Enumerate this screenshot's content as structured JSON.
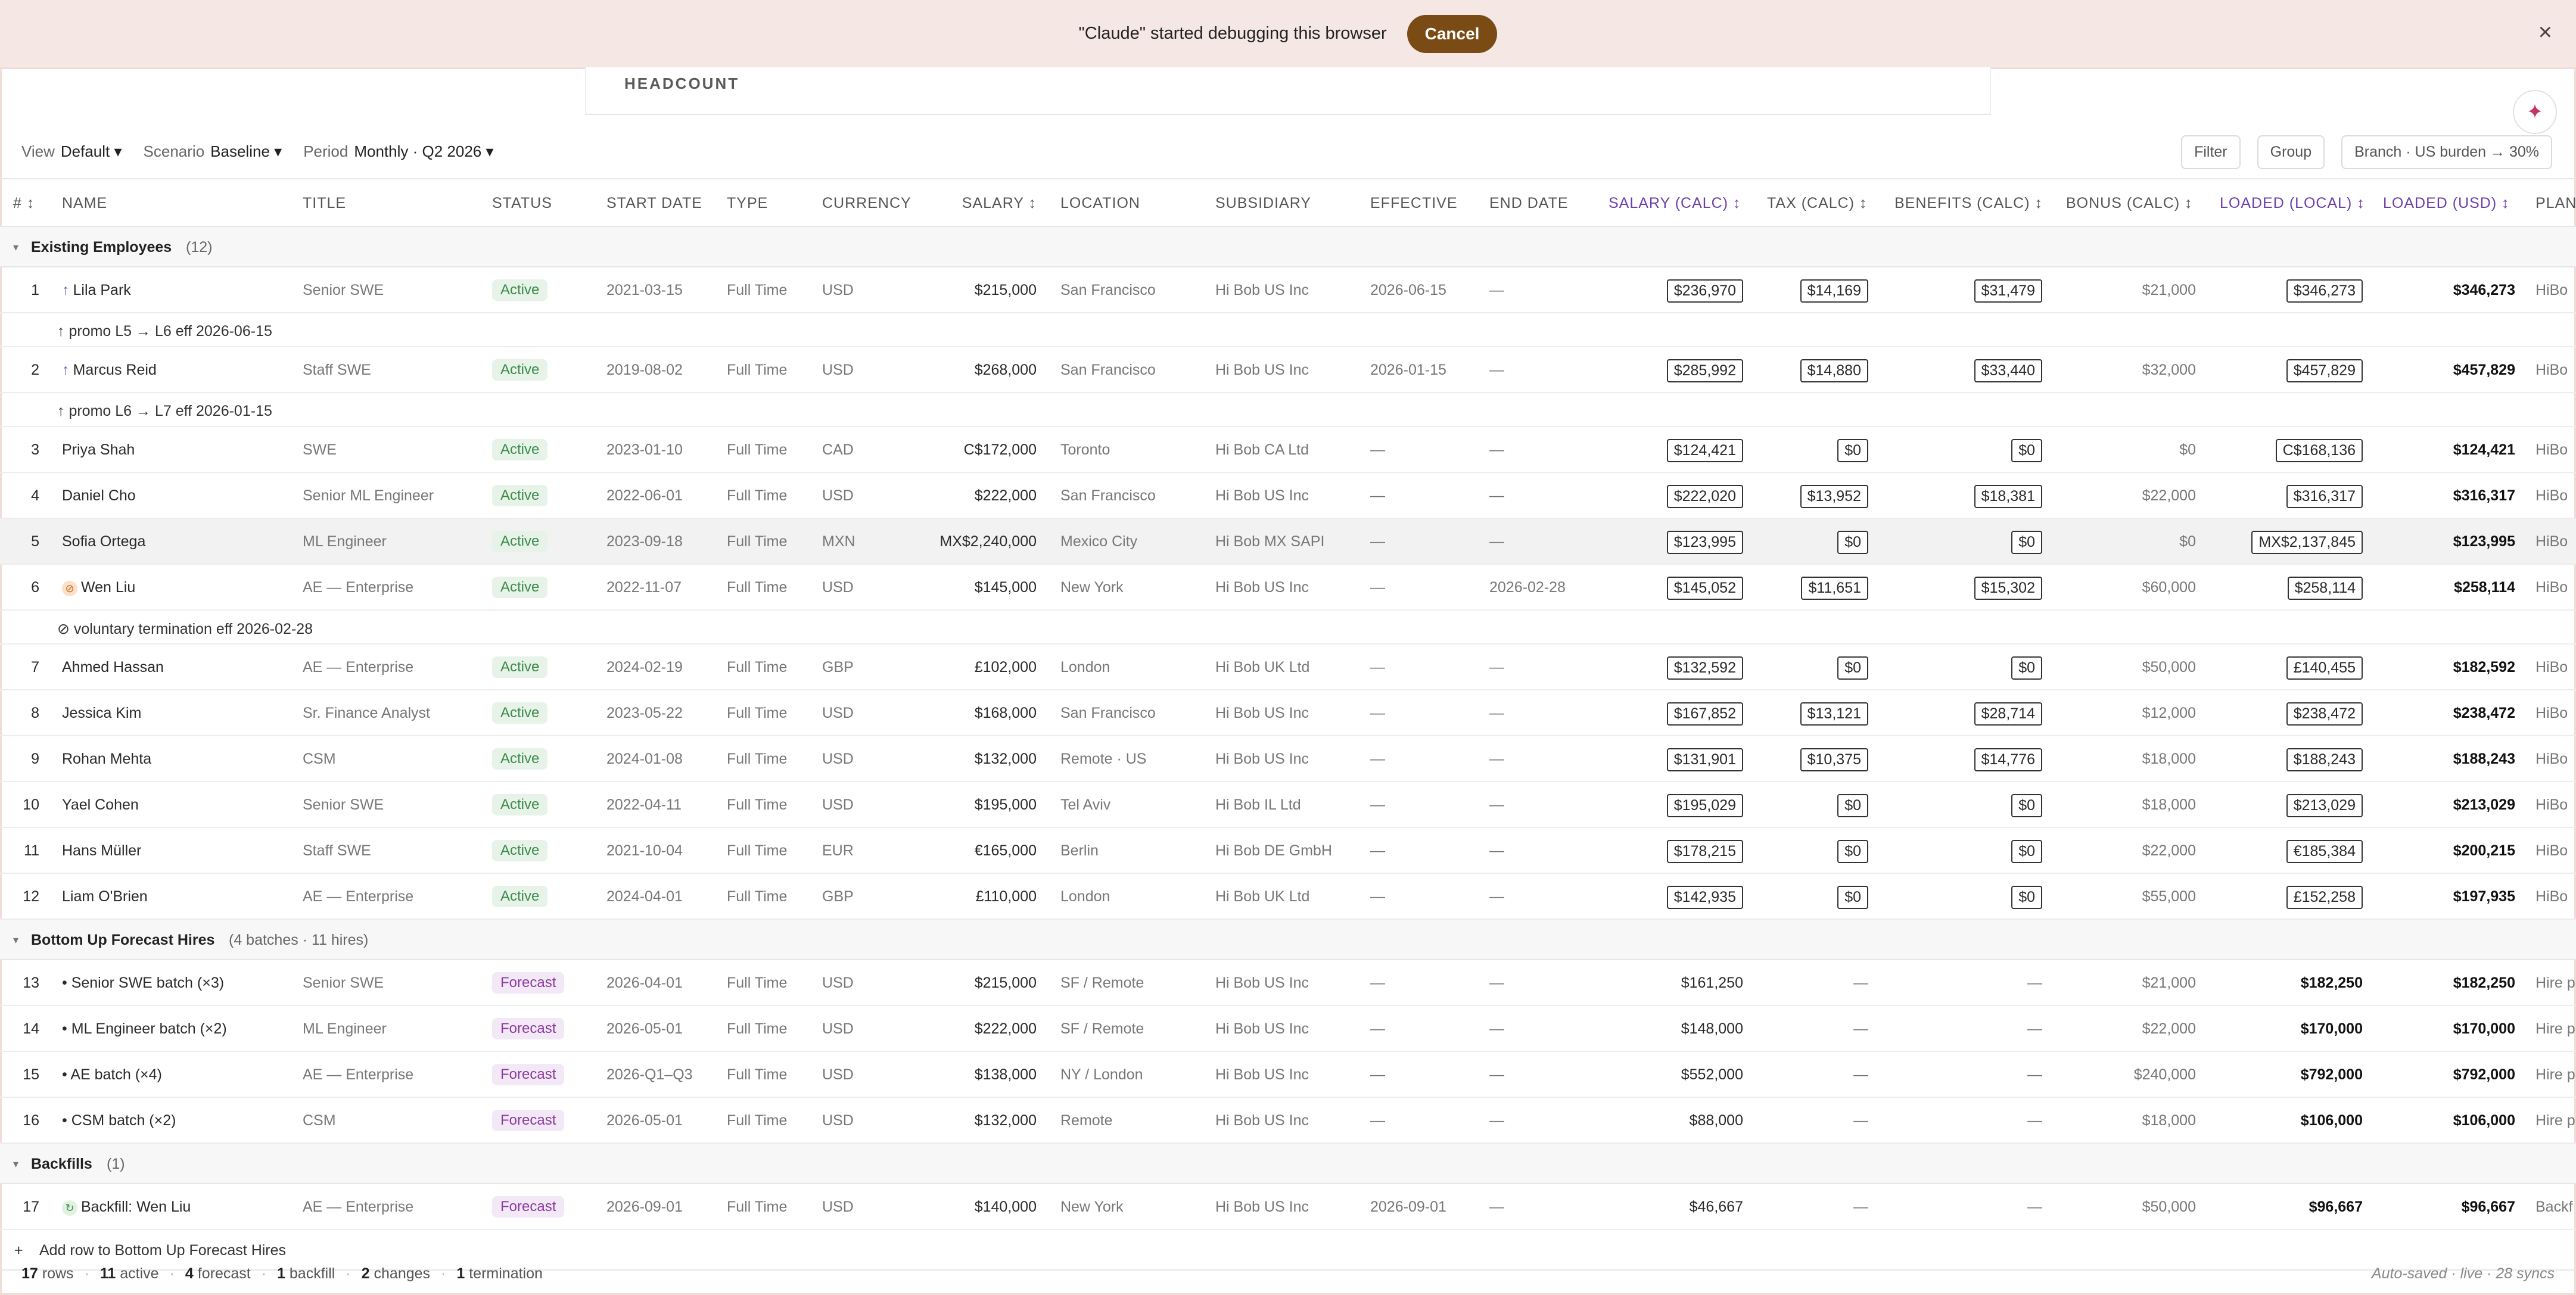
{
  "banner": {
    "message": "\"Claude\" started debugging this browser",
    "cancel_label": "Cancel",
    "close_icon": "×"
  },
  "tab": {
    "label": "HEADCOUNT"
  },
  "sparkle_icon": "✦",
  "toolbar": {
    "view_label": "View",
    "view_value": "Default ▾",
    "scenario_label": "Scenario",
    "scenario_value": "Baseline ▾",
    "period_label": "Period",
    "period_value": "Monthly · Q2 2026 ▾",
    "filter": "Filter",
    "group": "Group",
    "branch": "Branch · US burden → 30%"
  },
  "columns": {
    "num": "# ↕",
    "name": "NAME",
    "title": "TITLE",
    "status": "STATUS",
    "start": "START DATE",
    "type": "TYPE",
    "currency": "CURRENCY",
    "salary": "SALARY ↕",
    "location": "LOCATION",
    "subsidiary": "SUBSIDIARY",
    "effective": "EFFECTIVE",
    "end": "END DATE",
    "salary_calc": "SALARY (CALC) ↕",
    "tax_calc": "TAX (CALC) ↕",
    "benefits_calc": "BENEFITS (CALC) ↕",
    "bonus_calc": "BONUS (CALC) ↕",
    "loaded_local": "LOADED (LOCAL) ↕",
    "loaded_usd": "LOADED (USD) ↕",
    "plan": "PLAN"
  },
  "groups": {
    "existing": {
      "name": "Existing Employees",
      "count": "(12)"
    },
    "forecast": {
      "name": "Bottom Up Forecast Hires",
      "count": "(4 batches · 11 hires)"
    },
    "backfills": {
      "name": "Backfills",
      "count": "(1)"
    }
  },
  "rows": [
    {
      "n": "1",
      "name": "Lila Park",
      "title": "Senior SWE",
      "status": "Active",
      "start": "2021-03-15",
      "type": "Full Time",
      "cur": "USD",
      "salary": "$215,000",
      "loc": "San Francisco",
      "sub": "Hi Bob US Inc",
      "eff": "2026-06-15",
      "end": "—",
      "scalc": "$236,970",
      "tax": "$14,169",
      "ben": "$31,479",
      "bonus": "$21,000",
      "ll": "$346,273",
      "lusd": "$346,273",
      "plan": "HiBo"
    },
    {
      "n": "2",
      "name": "Marcus Reid",
      "title": "Staff SWE",
      "status": "Active",
      "start": "2019-08-02",
      "type": "Full Time",
      "cur": "USD",
      "salary": "$268,000",
      "loc": "San Francisco",
      "sub": "Hi Bob US Inc",
      "eff": "2026-01-15",
      "end": "—",
      "scalc": "$285,992",
      "tax": "$14,880",
      "ben": "$33,440",
      "bonus": "$32,000",
      "ll": "$457,829",
      "lusd": "$457,829",
      "plan": "HiBo"
    },
    {
      "n": "3",
      "name": "Priya Shah",
      "title": "SWE",
      "status": "Active",
      "start": "2023-01-10",
      "type": "Full Time",
      "cur": "CAD",
      "salary": "C$172,000",
      "loc": "Toronto",
      "sub": "Hi Bob CA Ltd",
      "eff": "—",
      "end": "—",
      "scalc": "$124,421",
      "tax": "$0",
      "ben": "$0",
      "bonus": "$0",
      "ll": "C$168,136",
      "lusd": "$124,421",
      "plan": "HiBo"
    },
    {
      "n": "4",
      "name": "Daniel Cho",
      "title": "Senior ML Engineer",
      "status": "Active",
      "start": "2022-06-01",
      "type": "Full Time",
      "cur": "USD",
      "salary": "$222,000",
      "loc": "San Francisco",
      "sub": "Hi Bob US Inc",
      "eff": "—",
      "end": "—",
      "scalc": "$222,020",
      "tax": "$13,952",
      "ben": "$18,381",
      "bonus": "$22,000",
      "ll": "$316,317",
      "lusd": "$316,317",
      "plan": "HiBo"
    },
    {
      "n": "5",
      "name": "Sofia Ortega",
      "title": "ML Engineer",
      "status": "Active",
      "start": "2023-09-18",
      "type": "Full Time",
      "cur": "MXN",
      "salary": "MX$2,240,000",
      "loc": "Mexico City",
      "sub": "Hi Bob MX SAPI",
      "eff": "—",
      "end": "—",
      "scalc": "$123,995",
      "tax": "$0",
      "ben": "$0",
      "bonus": "$0",
      "ll": "MX$2,137,845",
      "lusd": "$123,995",
      "plan": "HiBo"
    },
    {
      "n": "6",
      "name": "Wen Liu",
      "title": "AE — Enterprise",
      "status": "Active",
      "start": "2022-11-07",
      "type": "Full Time",
      "cur": "USD",
      "salary": "$145,000",
      "loc": "New York",
      "sub": "Hi Bob US Inc",
      "eff": "—",
      "end": "2026-02-28",
      "scalc": "$145,052",
      "tax": "$11,651",
      "ben": "$15,302",
      "bonus": "$60,000",
      "ll": "$258,114",
      "lusd": "$258,114",
      "plan": "HiBo"
    },
    {
      "n": "7",
      "name": "Ahmed Hassan",
      "title": "AE — Enterprise",
      "status": "Active",
      "start": "2024-02-19",
      "type": "Full Time",
      "cur": "GBP",
      "salary": "£102,000",
      "loc": "London",
      "sub": "Hi Bob UK Ltd",
      "eff": "—",
      "end": "—",
      "scalc": "$132,592",
      "tax": "$0",
      "ben": "$0",
      "bonus": "$50,000",
      "ll": "£140,455",
      "lusd": "$182,592",
      "plan": "HiBo"
    },
    {
      "n": "8",
      "name": "Jessica Kim",
      "title": "Sr. Finance Analyst",
      "status": "Active",
      "start": "2023-05-22",
      "type": "Full Time",
      "cur": "USD",
      "salary": "$168,000",
      "loc": "San Francisco",
      "sub": "Hi Bob US Inc",
      "eff": "—",
      "end": "—",
      "scalc": "$167,852",
      "tax": "$13,121",
      "ben": "$28,714",
      "bonus": "$12,000",
      "ll": "$238,472",
      "lusd": "$238,472",
      "plan": "HiBo"
    },
    {
      "n": "9",
      "name": "Rohan Mehta",
      "title": "CSM",
      "status": "Active",
      "start": "2024-01-08",
      "type": "Full Time",
      "cur": "USD",
      "salary": "$132,000",
      "loc": "Remote · US",
      "sub": "Hi Bob US Inc",
      "eff": "—",
      "end": "—",
      "scalc": "$131,901",
      "tax": "$10,375",
      "ben": "$14,776",
      "bonus": "$18,000",
      "ll": "$188,243",
      "lusd": "$188,243",
      "plan": "HiBo"
    },
    {
      "n": "10",
      "name": "Yael Cohen",
      "title": "Senior SWE",
      "status": "Active",
      "start": "2022-04-11",
      "type": "Full Time",
      "cur": "USD",
      "salary": "$195,000",
      "loc": "Tel Aviv",
      "sub": "Hi Bob IL Ltd",
      "eff": "—",
      "end": "—",
      "scalc": "$195,029",
      "tax": "$0",
      "ben": "$0",
      "bonus": "$18,000",
      "ll": "$213,029",
      "lusd": "$213,029",
      "plan": "HiBo"
    },
    {
      "n": "11",
      "name": "Hans Müller",
      "title": "Staff SWE",
      "status": "Active",
      "start": "2021-10-04",
      "type": "Full Time",
      "cur": "EUR",
      "salary": "€165,000",
      "loc": "Berlin",
      "sub": "Hi Bob DE GmbH",
      "eff": "—",
      "end": "—",
      "scalc": "$178,215",
      "tax": "$0",
      "ben": "$0",
      "bonus": "$22,000",
      "ll": "€185,384",
      "lusd": "$200,215",
      "plan": "HiBo"
    },
    {
      "n": "12",
      "name": "Liam O'Brien",
      "title": "AE — Enterprise",
      "status": "Active",
      "start": "2024-04-01",
      "type": "Full Time",
      "cur": "GBP",
      "salary": "£110,000",
      "loc": "London",
      "sub": "Hi Bob UK Ltd",
      "eff": "—",
      "end": "—",
      "scalc": "$142,935",
      "tax": "$0",
      "ben": "$0",
      "bonus": "$55,000",
      "ll": "£152,258",
      "lusd": "$197,935",
      "plan": "HiBo"
    },
    {
      "n": "13",
      "name": "• Senior SWE batch (×3)",
      "title": "Senior SWE",
      "status": "Forecast",
      "start": "2026-04-01",
      "type": "Full Time",
      "cur": "USD",
      "salary": "$215,000",
      "loc": "SF / Remote",
      "sub": "Hi Bob US Inc",
      "eff": "—",
      "end": "—",
      "scalc": "$161,250",
      "tax": "—",
      "ben": "—",
      "bonus": "$21,000",
      "ll": "$182,250",
      "lusd": "$182,250",
      "plan": "Hire p"
    },
    {
      "n": "14",
      "name": "• ML Engineer batch (×2)",
      "title": "ML Engineer",
      "status": "Forecast",
      "start": "2026-05-01",
      "type": "Full Time",
      "cur": "USD",
      "salary": "$222,000",
      "loc": "SF / Remote",
      "sub": "Hi Bob US Inc",
      "eff": "—",
      "end": "—",
      "scalc": "$148,000",
      "tax": "—",
      "ben": "—",
      "bonus": "$22,000",
      "ll": "$170,000",
      "lusd": "$170,000",
      "plan": "Hire p"
    },
    {
      "n": "15",
      "name": "• AE batch (×4)",
      "title": "AE — Enterprise",
      "status": "Forecast",
      "start": "2026-Q1–Q3",
      "type": "Full Time",
      "cur": "USD",
      "salary": "$138,000",
      "loc": "NY / London",
      "sub": "Hi Bob US Inc",
      "eff": "—",
      "end": "—",
      "scalc": "$552,000",
      "tax": "—",
      "ben": "—",
      "bonus": "$240,000",
      "ll": "$792,000",
      "lusd": "$792,000",
      "plan": "Hire p"
    },
    {
      "n": "16",
      "name": "• CSM batch (×2)",
      "title": "CSM",
      "status": "Forecast",
      "start": "2026-05-01",
      "type": "Full Time",
      "cur": "USD",
      "salary": "$132,000",
      "loc": "Remote",
      "sub": "Hi Bob US Inc",
      "eff": "—",
      "end": "—",
      "scalc": "$88,000",
      "tax": "—",
      "ben": "—",
      "bonus": "$18,000",
      "ll": "$106,000",
      "lusd": "$106,000",
      "plan": "Hire p"
    },
    {
      "n": "17",
      "name": "Backfill: Wen Liu",
      "title": "AE — Enterprise",
      "status": "Forecast",
      "start": "2026-09-01",
      "type": "Full Time",
      "cur": "USD",
      "salary": "$140,000",
      "loc": "New York",
      "sub": "Hi Bob US Inc",
      "eff": "2026-09-01",
      "end": "—",
      "scalc": "$46,667",
      "tax": "—",
      "ben": "—",
      "bonus": "$50,000",
      "ll": "$96,667",
      "lusd": "$96,667",
      "plan": "Backf"
    }
  ],
  "notes": {
    "n1": "↑  promo L5 → L6 eff 2026-06-15",
    "n2": "↑  promo L6 → L7 eff 2026-01-15",
    "n6": "⊘  voluntary termination eff 2026-02-28"
  },
  "add_row": {
    "icon": "+",
    "label": "Add row to Bottom Up Forecast Hires"
  },
  "footer": {
    "rows_n": "17",
    "rows_l": "rows",
    "active_n": "11",
    "active_l": "active",
    "forecast_n": "4",
    "forecast_l": "forecast",
    "backfill_n": "1",
    "backfill_l": "backfill",
    "changes_n": "2",
    "changes_l": "changes",
    "term_n": "1",
    "term_l": "termination",
    "status": "Auto-saved · live · 28 syncs"
  }
}
